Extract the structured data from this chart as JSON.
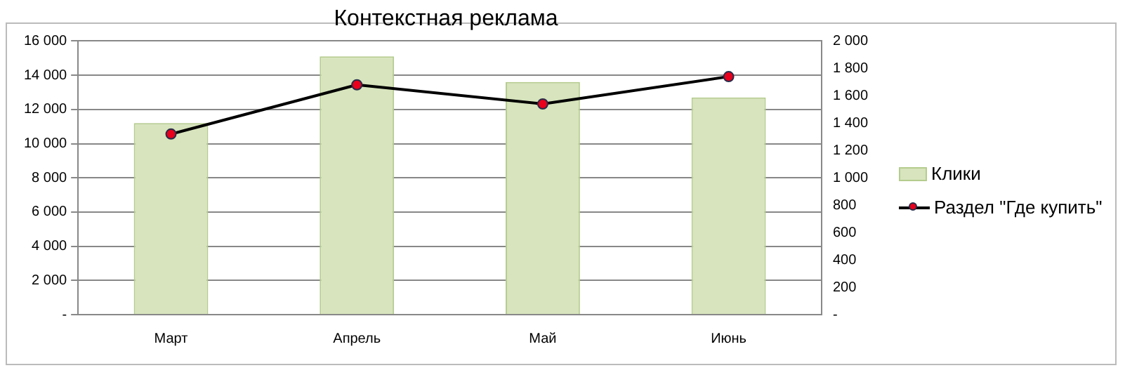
{
  "chart_data": {
    "type": "bar",
    "title": "Контекстная реклама",
    "categories": [
      "Март",
      "Апрель",
      "Май",
      "Июнь"
    ],
    "series": [
      {
        "name": "Клики",
        "color": "#d7e4bd",
        "values": [
          11200,
          15100,
          13600,
          12700
        ]
      },
      {
        "name": "Раздел \"Где купить\"",
        "type": "line",
        "axis": "y2",
        "color": "#000000",
        "values": [
          1320,
          1680,
          1540,
          1740
        ]
      }
    ],
    "ylim": [
      0,
      16000
    ],
    "yticks": [
      {
        "value": 0,
        "label": "-"
      },
      {
        "value": 2000,
        "label": "2 000"
      },
      {
        "value": 4000,
        "label": "4 000"
      },
      {
        "value": 6000,
        "label": "6 000"
      },
      {
        "value": 8000,
        "label": "8 000"
      },
      {
        "value": 10000,
        "label": "10 000"
      },
      {
        "value": 12000,
        "label": "12 000"
      },
      {
        "value": 14000,
        "label": "14 000"
      },
      {
        "value": 16000,
        "label": "16 000"
      }
    ],
    "y2lim": [
      0,
      2000
    ],
    "y2ticks": [
      {
        "value": 0,
        "label": "-"
      },
      200,
      400,
      600,
      800,
      {
        "value": 1000,
        "label": "1 000"
      },
      {
        "value": 1200,
        "label": "1 200"
      },
      {
        "value": 1400,
        "label": "1 400"
      },
      {
        "value": 1600,
        "label": "1 600"
      },
      {
        "value": 1800,
        "label": "1 800"
      },
      {
        "value": 2000,
        "label": "2 000"
      }
    ],
    "grid": "y",
    "legend": "right",
    "marker": "circle"
  }
}
